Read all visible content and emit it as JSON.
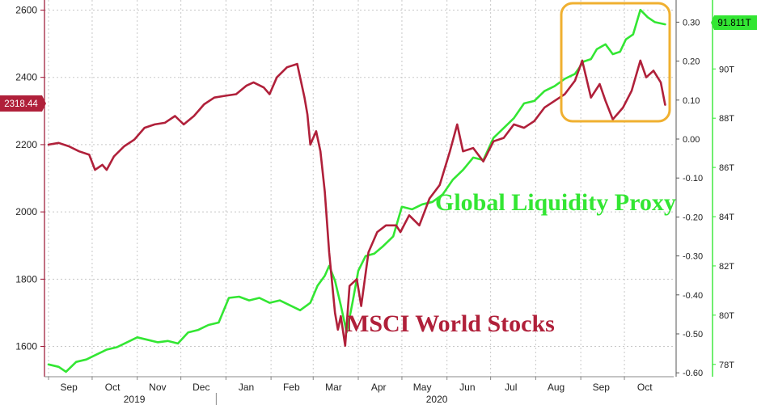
{
  "chart_data": {
    "type": "line",
    "annotations": {
      "liquidity_label": "Global Liquidity Proxy",
      "stocks_label": "MSCI World Stocks",
      "stocks_last_badge": "2318.44",
      "liquidity_last_badge": "91.811T"
    },
    "colors": {
      "stocks": "#b0203a",
      "liquidity": "#33e633",
      "highlight_box": "#f0b030",
      "axis": "#9a1030"
    },
    "x_axis": {
      "months": [
        "Sep",
        "Oct",
        "Nov",
        "Dec",
        "Jan",
        "Feb",
        "Mar",
        "Apr",
        "May",
        "Jun",
        "Jul",
        "Aug",
        "Sep",
        "Oct"
      ],
      "years": [
        "2019",
        "2020"
      ],
      "range": [
        "2019-09-01",
        "2020-10-31"
      ]
    },
    "y_left": {
      "ticks": [
        "2600",
        "2400",
        "2200",
        "2000",
        "1800",
        "1600"
      ],
      "range": [
        1510,
        2630
      ]
    },
    "y_mid": {
      "ticks": [
        "0.30",
        "0.20",
        "0.10",
        "0.00",
        "-0.10",
        "-0.20",
        "-0.30",
        "-0.40",
        "-0.50",
        "-0.60"
      ]
    },
    "y_right": {
      "ticks": [
        "90T",
        "88T",
        "86T",
        "84T",
        "82T",
        "80T",
        "78T"
      ],
      "range": [
        77.5,
        92.8
      ]
    },
    "series": [
      {
        "name": "MSCI World Stocks",
        "axis": "left",
        "values": [
          [
            "2019-09-01",
            2200
          ],
          [
            "2019-09-08",
            2205
          ],
          [
            "2019-09-15",
            2195
          ],
          [
            "2019-09-22",
            2180
          ],
          [
            "2019-09-29",
            2170
          ],
          [
            "2019-10-03",
            2125
          ],
          [
            "2019-10-08",
            2140
          ],
          [
            "2019-10-11",
            2125
          ],
          [
            "2019-10-16",
            2165
          ],
          [
            "2019-10-23",
            2195
          ],
          [
            "2019-10-30",
            2215
          ],
          [
            "2019-11-06",
            2250
          ],
          [
            "2019-11-13",
            2260
          ],
          [
            "2019-11-20",
            2265
          ],
          [
            "2019-11-27",
            2285
          ],
          [
            "2019-12-03",
            2260
          ],
          [
            "2019-12-10",
            2285
          ],
          [
            "2019-12-17",
            2320
          ],
          [
            "2019-12-24",
            2340
          ],
          [
            "2019-12-31",
            2345
          ],
          [
            "2020-01-08",
            2350
          ],
          [
            "2020-01-15",
            2375
          ],
          [
            "2020-01-20",
            2385
          ],
          [
            "2020-01-27",
            2370
          ],
          [
            "2020-01-31",
            2350
          ],
          [
            "2020-02-05",
            2400
          ],
          [
            "2020-02-12",
            2430
          ],
          [
            "2020-02-19",
            2440
          ],
          [
            "2020-02-24",
            2340
          ],
          [
            "2020-02-26",
            2290
          ],
          [
            "2020-02-28",
            2200
          ],
          [
            "2020-03-03",
            2240
          ],
          [
            "2020-03-06",
            2180
          ],
          [
            "2020-03-09",
            2060
          ],
          [
            "2020-03-12",
            1880
          ],
          [
            "2020-03-16",
            1700
          ],
          [
            "2020-03-18",
            1650
          ],
          [
            "2020-03-20",
            1690
          ],
          [
            "2020-03-23",
            1602
          ],
          [
            "2020-03-26",
            1780
          ],
          [
            "2020-03-31",
            1800
          ],
          [
            "2020-04-03",
            1720
          ],
          [
            "2020-04-08",
            1880
          ],
          [
            "2020-04-14",
            1940
          ],
          [
            "2020-04-20",
            1960
          ],
          [
            "2020-04-27",
            1960
          ],
          [
            "2020-04-30",
            1940
          ],
          [
            "2020-05-06",
            1990
          ],
          [
            "2020-05-13",
            1960
          ],
          [
            "2020-05-20",
            2040
          ],
          [
            "2020-05-27",
            2080
          ],
          [
            "2020-06-03",
            2180
          ],
          [
            "2020-06-08",
            2260
          ],
          [
            "2020-06-12",
            2180
          ],
          [
            "2020-06-19",
            2190
          ],
          [
            "2020-06-26",
            2150
          ],
          [
            "2020-07-03",
            2210
          ],
          [
            "2020-07-10",
            2220
          ],
          [
            "2020-07-17",
            2260
          ],
          [
            "2020-07-24",
            2250
          ],
          [
            "2020-07-31",
            2270
          ],
          [
            "2020-08-07",
            2310
          ],
          [
            "2020-08-14",
            2330
          ],
          [
            "2020-08-21",
            2350
          ],
          [
            "2020-08-28",
            2390
          ],
          [
            "2020-09-02",
            2450
          ],
          [
            "2020-09-08",
            2340
          ],
          [
            "2020-09-14",
            2380
          ],
          [
            "2020-09-18",
            2330
          ],
          [
            "2020-09-23",
            2275
          ],
          [
            "2020-09-30",
            2310
          ],
          [
            "2020-10-06",
            2360
          ],
          [
            "2020-10-12",
            2450
          ],
          [
            "2020-10-16",
            2400
          ],
          [
            "2020-10-21",
            2420
          ],
          [
            "2020-10-26",
            2385
          ],
          [
            "2020-10-29",
            2318.44
          ]
        ]
      },
      {
        "name": "Global Liquidity Proxy",
        "axis": "right",
        "values": [
          [
            "2019-09-01",
            78.0
          ],
          [
            "2019-09-08",
            77.9
          ],
          [
            "2019-09-13",
            77.7
          ],
          [
            "2019-09-20",
            78.1
          ],
          [
            "2019-09-27",
            78.2
          ],
          [
            "2019-10-04",
            78.4
          ],
          [
            "2019-10-11",
            78.6
          ],
          [
            "2019-10-18",
            78.7
          ],
          [
            "2019-10-25",
            78.9
          ],
          [
            "2019-11-01",
            79.1
          ],
          [
            "2019-11-08",
            79.0
          ],
          [
            "2019-11-15",
            78.9
          ],
          [
            "2019-11-22",
            78.95
          ],
          [
            "2019-11-29",
            78.85
          ],
          [
            "2019-12-06",
            79.3
          ],
          [
            "2019-12-13",
            79.4
          ],
          [
            "2019-12-20",
            79.6
          ],
          [
            "2019-12-27",
            79.7
          ],
          [
            "2020-01-03",
            80.7
          ],
          [
            "2020-01-10",
            80.75
          ],
          [
            "2020-01-17",
            80.6
          ],
          [
            "2020-01-24",
            80.7
          ],
          [
            "2020-01-31",
            80.5
          ],
          [
            "2020-02-07",
            80.6
          ],
          [
            "2020-02-14",
            80.4
          ],
          [
            "2020-02-21",
            80.2
          ],
          [
            "2020-02-28",
            80.5
          ],
          [
            "2020-03-04",
            81.2
          ],
          [
            "2020-03-09",
            81.6
          ],
          [
            "2020-03-12",
            82.0
          ],
          [
            "2020-03-16",
            81.4
          ],
          [
            "2020-03-20",
            80.4
          ],
          [
            "2020-03-24",
            79.3
          ],
          [
            "2020-03-28",
            80.5
          ],
          [
            "2020-04-01",
            81.8
          ],
          [
            "2020-04-06",
            82.4
          ],
          [
            "2020-04-12",
            82.5
          ],
          [
            "2020-04-18",
            82.8
          ],
          [
            "2020-04-25",
            83.2
          ],
          [
            "2020-05-01",
            84.4
          ],
          [
            "2020-05-08",
            84.3
          ],
          [
            "2020-05-15",
            84.5
          ],
          [
            "2020-05-22",
            84.6
          ],
          [
            "2020-05-29",
            84.9
          ],
          [
            "2020-06-05",
            85.5
          ],
          [
            "2020-06-12",
            85.9
          ],
          [
            "2020-06-19",
            86.4
          ],
          [
            "2020-06-26",
            86.3
          ],
          [
            "2020-07-03",
            87.2
          ],
          [
            "2020-07-10",
            87.6
          ],
          [
            "2020-07-17",
            88.0
          ],
          [
            "2020-07-24",
            88.6
          ],
          [
            "2020-07-31",
            88.7
          ],
          [
            "2020-08-07",
            89.1
          ],
          [
            "2020-08-14",
            89.3
          ],
          [
            "2020-08-21",
            89.6
          ],
          [
            "2020-08-28",
            89.8
          ],
          [
            "2020-09-03",
            90.3
          ],
          [
            "2020-09-08",
            90.4
          ],
          [
            "2020-09-12",
            90.8
          ],
          [
            "2020-09-18",
            91.0
          ],
          [
            "2020-09-23",
            90.6
          ],
          [
            "2020-09-28",
            90.7
          ],
          [
            "2020-10-02",
            91.2
          ],
          [
            "2020-10-07",
            91.4
          ],
          [
            "2020-10-12",
            92.4
          ],
          [
            "2020-10-17",
            92.1
          ],
          [
            "2020-10-22",
            91.9
          ],
          [
            "2020-10-29",
            91.811
          ]
        ]
      }
    ]
  }
}
